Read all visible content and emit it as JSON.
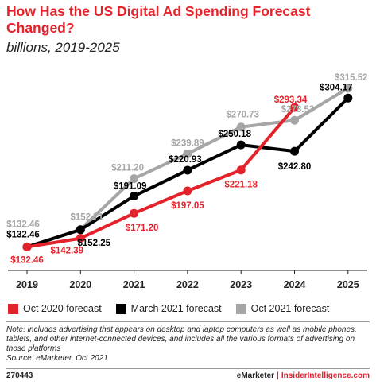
{
  "header": {
    "title": "How Has the US Digital Ad Spending Forecast Changed?",
    "subtitle": "billions, 2019-2025"
  },
  "chart_data": {
    "type": "line",
    "title": "How Has the US Digital Ad Spending Forecast Changed?",
    "subtitle": "billions, 2019-2025",
    "x": [
      "2019",
      "2020",
      "2021",
      "2022",
      "2023",
      "2024",
      "2025"
    ],
    "ylim": [
      120,
      320
    ],
    "grid": false,
    "legend_position": "bottom",
    "series": [
      {
        "name": "Oct 2021 forecast",
        "color": "#a6a6a6",
        "values": [
          132.46,
          152.71,
          211.2,
          239.89,
          270.73,
          278.53,
          315.52
        ],
        "labels": [
          "$132.46",
          "$152.71",
          "$211.20",
          "$239.89",
          "$270.73",
          "$278.53",
          "$315.52"
        ]
      },
      {
        "name": "March 2021 forecast",
        "color": "#000000",
        "values": [
          132.46,
          152.25,
          191.09,
          220.93,
          250.18,
          242.8,
          304.17
        ],
        "labels": [
          "$132.46",
          "$152.25",
          "$191.09",
          "$220.93",
          "$250.18",
          "$242.80",
          "$304.17"
        ]
      },
      {
        "name": "Oct 2020 forecast",
        "color": "#e4222b",
        "values": [
          132.46,
          142.39,
          171.2,
          197.05,
          221.18,
          293.34,
          null
        ],
        "labels": [
          "$132.46",
          "$142.39",
          "$171.20",
          "$197.05",
          "$221.18",
          "$293.34",
          null
        ]
      }
    ]
  },
  "legend": [
    {
      "label": "Oct 2020 forecast",
      "color": "#e4222b"
    },
    {
      "label": "March 2021 forecast",
      "color": "#000000"
    },
    {
      "label": "Oct 2021 forecast",
      "color": "#a6a6a6"
    }
  ],
  "note": {
    "text": "Note: includes advertising that appears on desktop and laptop computers as well as mobile phones, tablets, and other internet-connected devices, and includes all the various formats of advertising on those platforms",
    "source": "Source: eMarketer, Oct 2021"
  },
  "footer": {
    "id": "270443",
    "brand": "eMarketer",
    "separator": "|",
    "brand2": "InsiderIntelligence.com"
  }
}
